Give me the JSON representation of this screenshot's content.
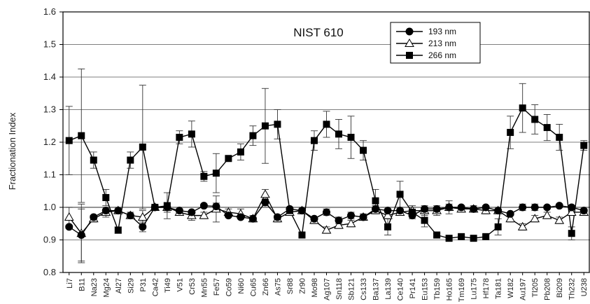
{
  "chart_data": {
    "type": "line",
    "title": "NIST 610",
    "xlabel": "",
    "ylabel": "Fractionation Index",
    "ylim": [
      0.8,
      1.6
    ],
    "yticks": [
      "0.8",
      "0.9",
      "1.0",
      "1.1",
      "1.2",
      "1.3",
      "1.4",
      "1.5",
      "1.6"
    ],
    "grid": "horizontal",
    "legend_position": "top-right",
    "categories": [
      "Li7",
      "B11",
      "Na23",
      "Mg24",
      "Al27",
      "Si29",
      "P31",
      "Ca42",
      "Ti49",
      "V51",
      "Cr53",
      "Mn55",
      "Fe57",
      "Co59",
      "Ni60",
      "Cu65",
      "Zn66",
      "As75",
      "Sr88",
      "Zr90",
      "Mo98",
      "Ag107",
      "Sn118",
      "Sb121",
      "Cs133",
      "Ba137",
      "La139",
      "Ce140",
      "Pr141",
      "Eu153",
      "Tb159",
      "Ho165",
      "Tm169",
      "Lu175",
      "Hf178",
      "Ta181",
      "W182",
      "Au197",
      "Tl205",
      "Pb208",
      "Bi209",
      "Th232",
      "U238"
    ],
    "series": [
      {
        "name": "193 nm",
        "marker": "circle",
        "values": [
          0.94,
          0.915,
          0.97,
          0.99,
          0.99,
          0.975,
          0.94,
          1.0,
          1.0,
          0.99,
          0.985,
          1.005,
          1.003,
          0.975,
          0.97,
          0.965,
          1.015,
          0.97,
          0.995,
          0.99,
          0.965,
          0.985,
          0.96,
          0.975,
          0.97,
          0.995,
          0.99,
          0.99,
          0.975,
          0.995,
          0.995,
          1.0,
          1.0,
          0.995,
          1.0,
          0.99,
          0.98,
          1.0,
          1.0,
          1.0,
          1.005,
          1.0,
          0.99
        ],
        "errors": [
          0.005,
          0.08,
          0.005,
          0.005,
          0.005,
          0.005,
          0.015,
          0.005,
          0.01,
          0.005,
          0.005,
          0.005,
          0.01,
          0.005,
          0.005,
          0.005,
          0.01,
          0.005,
          0.005,
          0.005,
          0.005,
          0.01,
          0.01,
          0.01,
          0.005,
          0.01,
          0.005,
          0.005,
          0.005,
          0.005,
          0.005,
          0.01,
          0.005,
          0.005,
          0.005,
          0.005,
          0.005,
          0.01,
          0.01,
          0.005,
          0.005,
          0.005,
          0.005
        ]
      },
      {
        "name": "213 nm",
        "marker": "triangle",
        "values": [
          0.97,
          0.92,
          0.965,
          0.985,
          0.99,
          0.975,
          0.97,
          1.0,
          1.0,
          0.985,
          0.975,
          0.975,
          0.995,
          0.985,
          0.98,
          0.965,
          1.04,
          0.965,
          0.985,
          0.99,
          0.96,
          0.93,
          0.945,
          0.95,
          0.97,
          0.99,
          0.975,
          0.985,
          0.99,
          0.99,
          0.99,
          1.0,
          0.995,
          0.995,
          0.99,
          0.99,
          0.965,
          0.94,
          0.965,
          0.975,
          0.96,
          0.985,
          0.985
        ],
        "errors": [
          0.03,
          0.09,
          0.01,
          0.015,
          0.01,
          0.01,
          0.02,
          0.005,
          0.015,
          0.01,
          0.015,
          0.01,
          0.04,
          0.01,
          0.015,
          0.01,
          0.015,
          0.01,
          0.01,
          0.01,
          0.01,
          0.01,
          0.01,
          0.01,
          0.01,
          0.01,
          0.01,
          0.01,
          0.01,
          0.015,
          0.015,
          0.02,
          0.01,
          0.01,
          0.01,
          0.01,
          0.01,
          0.01,
          0.01,
          0.01,
          0.01,
          0.01,
          0.01
        ]
      },
      {
        "name": "266 nm",
        "marker": "square",
        "values": [
          1.205,
          1.22,
          1.145,
          1.03,
          0.93,
          1.145,
          1.185,
          1.0,
          1.005,
          1.215,
          1.225,
          1.095,
          1.105,
          1.15,
          1.17,
          1.22,
          1.25,
          1.255,
          0.99,
          0.915,
          1.205,
          1.255,
          1.225,
          1.215,
          1.175,
          1.02,
          0.94,
          1.04,
          0.985,
          0.96,
          0.915,
          0.905,
          0.91,
          0.905,
          0.91,
          0.94,
          1.23,
          1.305,
          1.27,
          1.245,
          1.215,
          0.92,
          1.19
        ],
        "errors": [
          0.105,
          0.205,
          0.025,
          0.025,
          0.01,
          0.025,
          0.19,
          0.005,
          0.04,
          0.02,
          0.04,
          0.015,
          0.06,
          0.005,
          0.025,
          0.03,
          0.115,
          0.045,
          0.01,
          0.005,
          0.03,
          0.04,
          0.045,
          0.065,
          0.03,
          0.035,
          0.025,
          0.04,
          0.02,
          0.02,
          0.005,
          0.005,
          0.005,
          0.005,
          0.005,
          0.025,
          0.05,
          0.075,
          0.045,
          0.04,
          0.04,
          0.02,
          0.015
        ]
      }
    ]
  }
}
